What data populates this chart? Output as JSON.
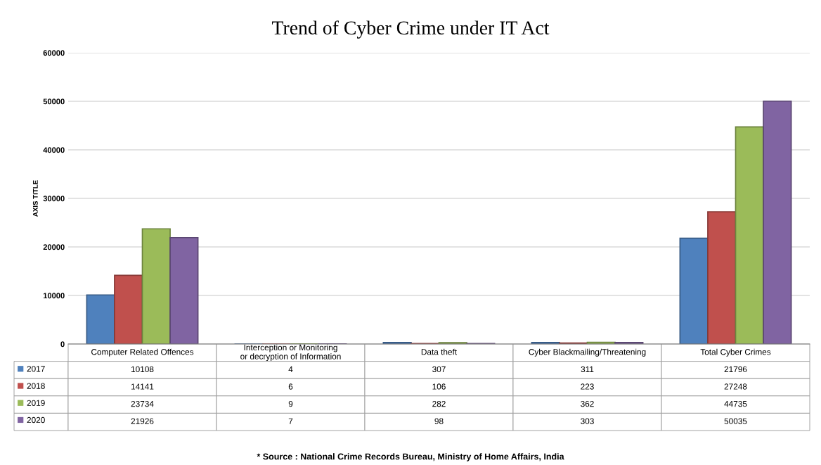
{
  "chart_data": {
    "type": "bar",
    "title": "Trend of Cyber Crime under IT Act",
    "ylabel": "AXIS TITLE",
    "categories": [
      "Computer Related Offences",
      "Interception or Monitoring or decryption of Information",
      "Data theft",
      "Cyber Blackmailing/Threatening",
      "Total Cyber Crimes"
    ],
    "series": [
      {
        "name": "2017",
        "color": "#4f81bd",
        "values": [
          10108,
          4,
          307,
          311,
          21796
        ]
      },
      {
        "name": "2018",
        "color": "#c0504d",
        "values": [
          14141,
          6,
          106,
          223,
          27248
        ]
      },
      {
        "name": "2019",
        "color": "#9bbb59",
        "values": [
          23734,
          9,
          282,
          362,
          44735
        ]
      },
      {
        "name": "2020",
        "color": "#8064a2",
        "values": [
          21926,
          7,
          98,
          303,
          50035
        ]
      }
    ],
    "ylim": [
      0,
      60000
    ],
    "yticks": [
      0,
      10000,
      20000,
      30000,
      40000,
      50000,
      60000
    ],
    "grid": "y",
    "data_labels": true,
    "legend": "bottom left",
    "annotations": [
      "* Source : National Crime Records Bureau, Ministry of Home Affairs, India"
    ]
  }
}
